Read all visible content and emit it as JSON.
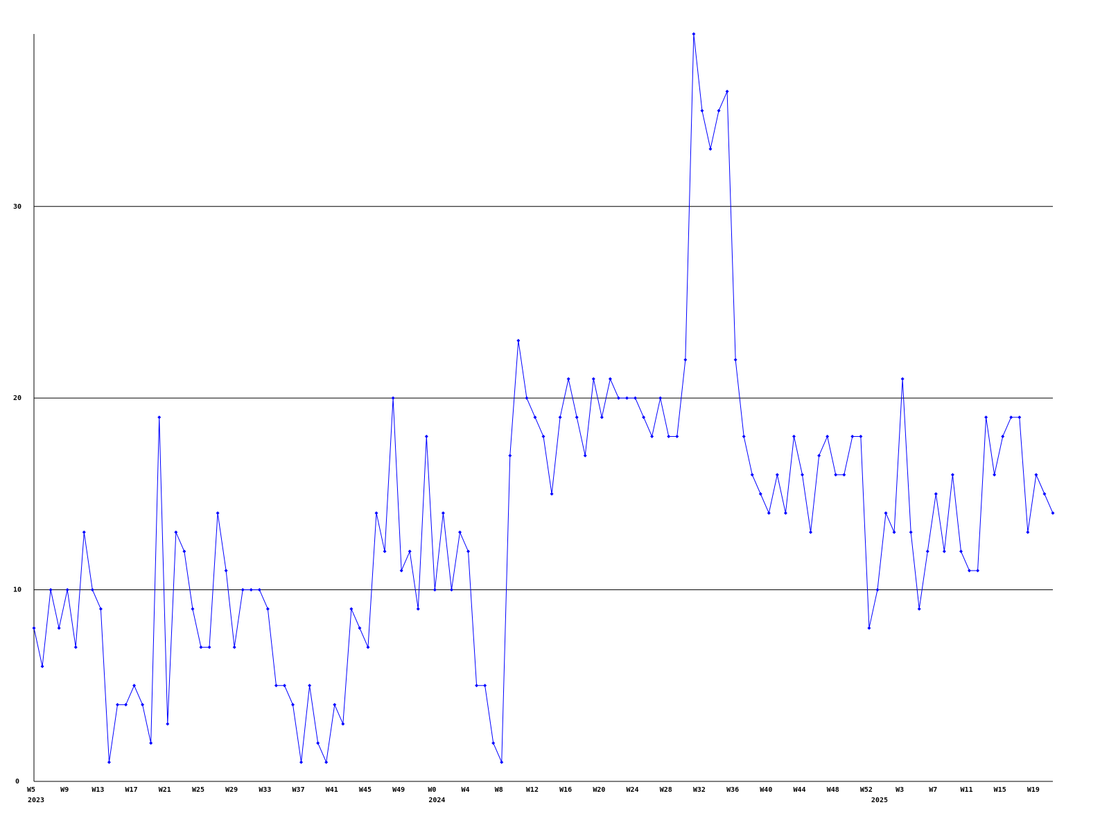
{
  "chart_data": {
    "type": "line",
    "categories": [
      "W5",
      null,
      null,
      null,
      "W9",
      null,
      null,
      null,
      "W13",
      null,
      null,
      null,
      "W17",
      null,
      null,
      null,
      "W21",
      null,
      null,
      null,
      "W25",
      null,
      null,
      null,
      "W29",
      null,
      null,
      null,
      "W33",
      null,
      null,
      null,
      "W37",
      null,
      null,
      null,
      "W41",
      null,
      null,
      null,
      "W45",
      null,
      null,
      null,
      "W49",
      null,
      null,
      null,
      "W0",
      null,
      null,
      null,
      "W4",
      null,
      null,
      null,
      "W8",
      null,
      null,
      null,
      "W12",
      null,
      null,
      null,
      "W16",
      null,
      null,
      null,
      "W20",
      null,
      null,
      null,
      "W24",
      null,
      null,
      null,
      "W28",
      null,
      null,
      null,
      "W32",
      null,
      null,
      null,
      "W36",
      null,
      null,
      null,
      "W40",
      null,
      null,
      null,
      "W44",
      null,
      null,
      null,
      "W48",
      null,
      null,
      null,
      "W52",
      null,
      null,
      null,
      "W3",
      null,
      null,
      null,
      "W7",
      null,
      null,
      null,
      "W11",
      null,
      null,
      null,
      "W15",
      null,
      null,
      null,
      "W19",
      null,
      null
    ],
    "category_years": [
      "2023",
      null,
      null,
      null,
      null,
      null,
      null,
      null,
      null,
      null,
      null,
      null,
      null,
      null,
      null,
      null,
      null,
      null,
      null,
      null,
      null,
      null,
      null,
      null,
      null,
      null,
      null,
      null,
      null,
      null,
      null,
      null,
      null,
      null,
      null,
      null,
      null,
      null,
      null,
      null,
      null,
      null,
      null,
      null,
      null,
      null,
      null,
      null,
      "2024",
      null,
      null,
      null,
      null,
      null,
      null,
      null,
      null,
      null,
      null,
      null,
      null,
      null,
      null,
      null,
      null,
      null,
      null,
      null,
      null,
      null,
      null,
      null,
      null,
      null,
      null,
      null,
      null,
      null,
      null,
      null,
      null,
      null,
      null,
      null,
      null,
      null,
      null,
      null,
      null,
      null,
      null,
      null,
      null,
      null,
      null,
      null,
      null,
      null,
      null,
      null,
      null,
      "2025",
      null,
      null,
      null,
      null,
      null,
      null,
      null,
      null,
      null,
      null,
      null,
      null,
      null,
      null,
      null,
      null,
      null,
      null,
      null,
      null,
      null
    ],
    "series": [
      {
        "color": "#0000ff",
        "values": [
          8,
          6,
          10,
          8,
          10,
          7,
          13,
          10,
          9,
          1,
          4,
          4,
          5,
          4,
          2,
          19,
          3,
          13,
          12,
          9,
          7,
          7,
          14,
          11,
          7,
          10,
          10,
          10,
          9,
          5,
          5,
          4,
          1,
          5,
          2,
          1,
          4,
          3,
          9,
          8,
          7,
          14,
          12,
          20,
          11,
          12,
          9,
          18,
          10,
          14,
          10,
          13,
          12,
          5,
          5,
          2,
          1,
          17,
          23,
          20,
          19,
          18,
          15,
          19,
          21,
          19,
          17,
          21,
          19,
          21,
          20,
          20,
          20,
          19,
          18,
          20,
          18,
          18,
          22,
          39,
          35,
          33,
          35,
          36,
          22,
          18,
          16,
          15,
          14,
          16,
          14,
          18,
          16,
          13,
          17,
          18,
          16,
          16,
          18,
          18,
          8,
          10,
          14,
          13,
          21,
          13,
          9,
          12,
          15,
          12,
          16,
          12,
          11,
          11,
          19,
          16,
          18,
          19,
          19,
          13,
          16,
          15,
          14
        ]
      }
    ],
    "ylim": [
      0,
      39
    ],
    "yticks": [
      0,
      10,
      20,
      30
    ],
    "grid": true,
    "grid_color": "#000000"
  }
}
